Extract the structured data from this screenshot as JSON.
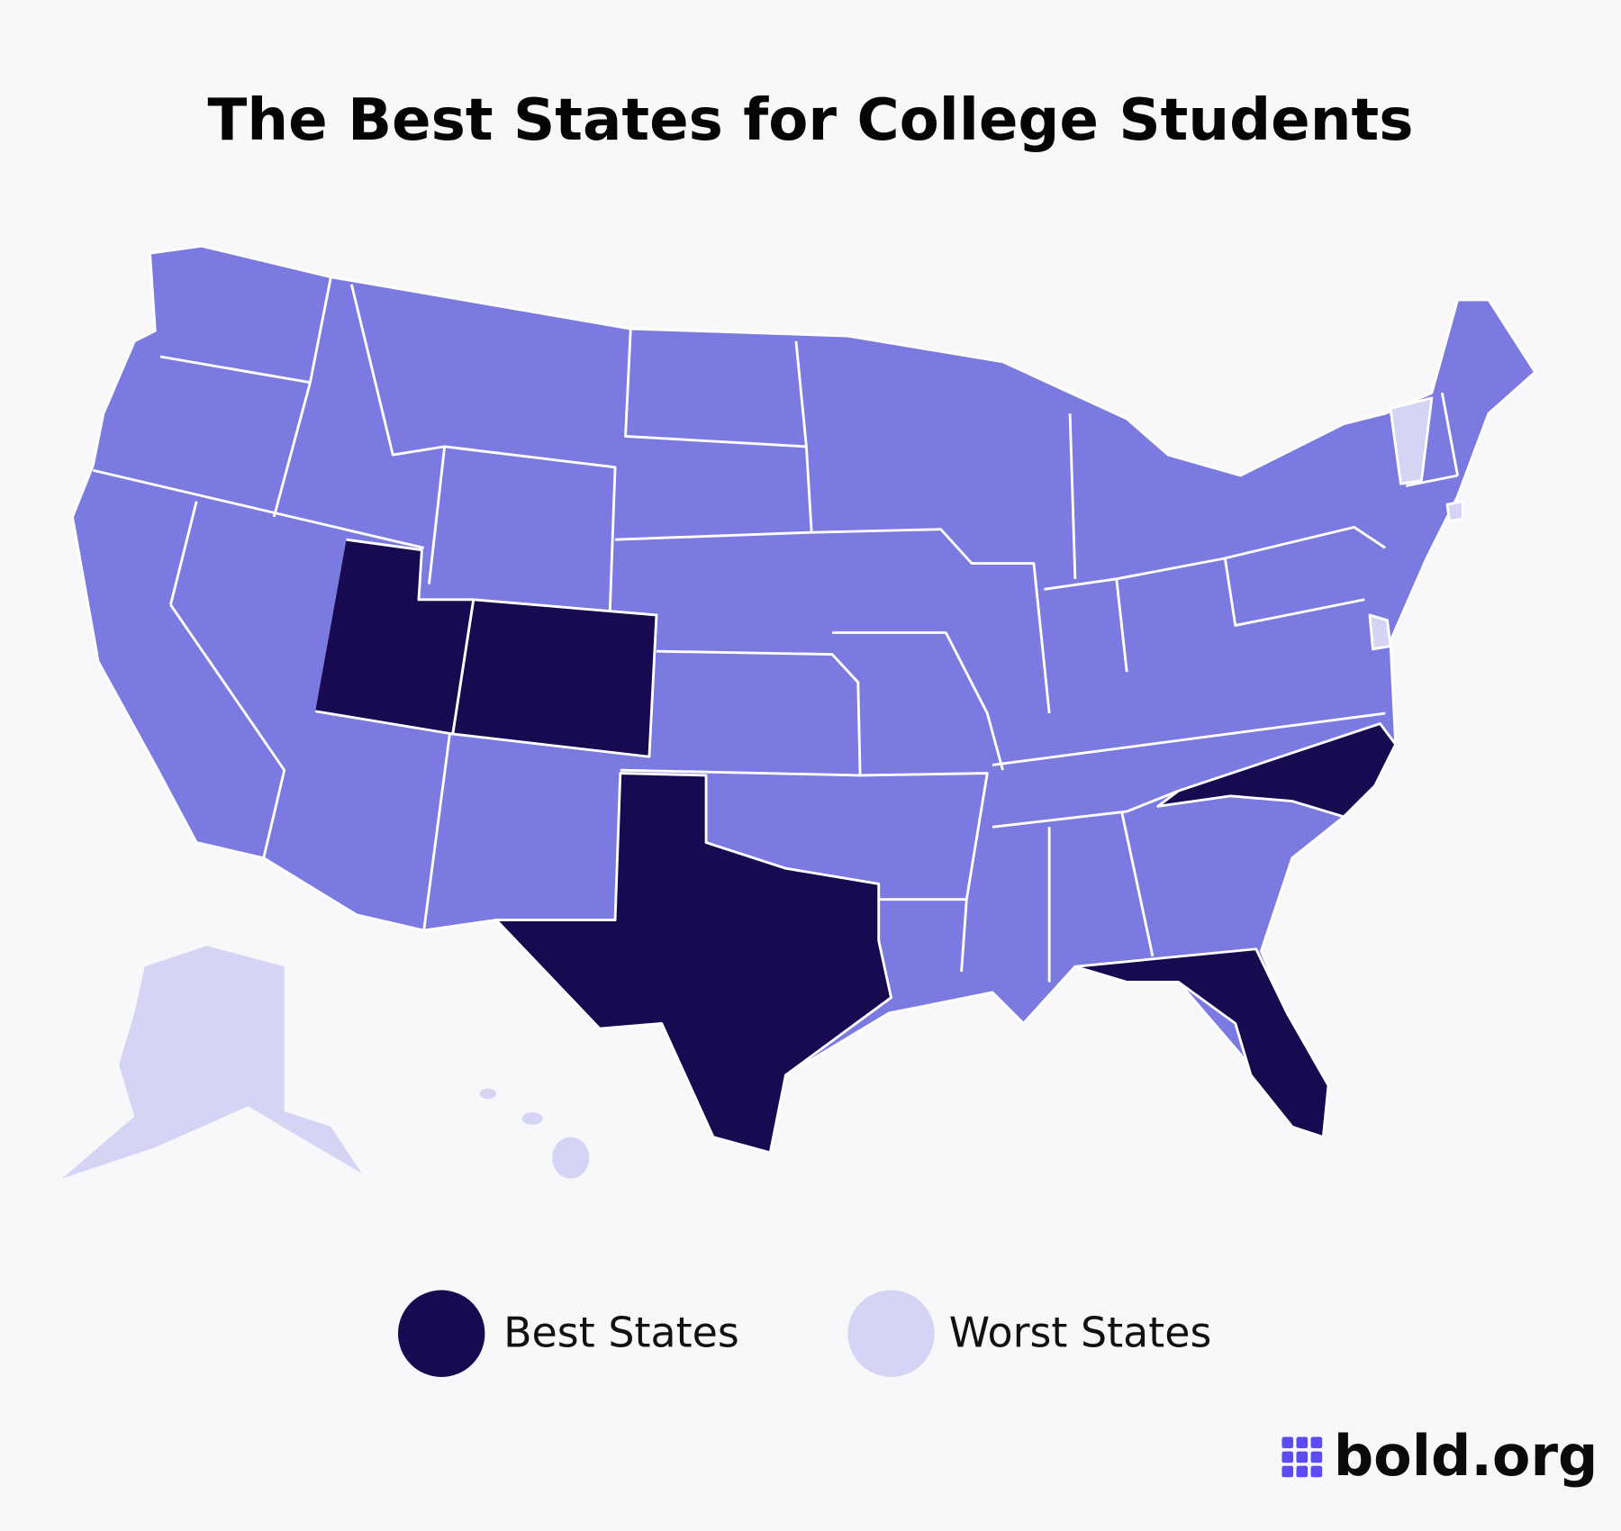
{
  "header": {
    "title": "The Best States for College Students"
  },
  "map": {
    "color": "#7b7ae0"
  },
  "legend": [
    {
      "label": "Best States",
      "color": "#170a50"
    },
    {
      "label": "Worst States",
      "color": "#d6d4f4"
    }
  ],
  "logo": {
    "text": "bold.org",
    "color": "#5b4bf0"
  }
}
